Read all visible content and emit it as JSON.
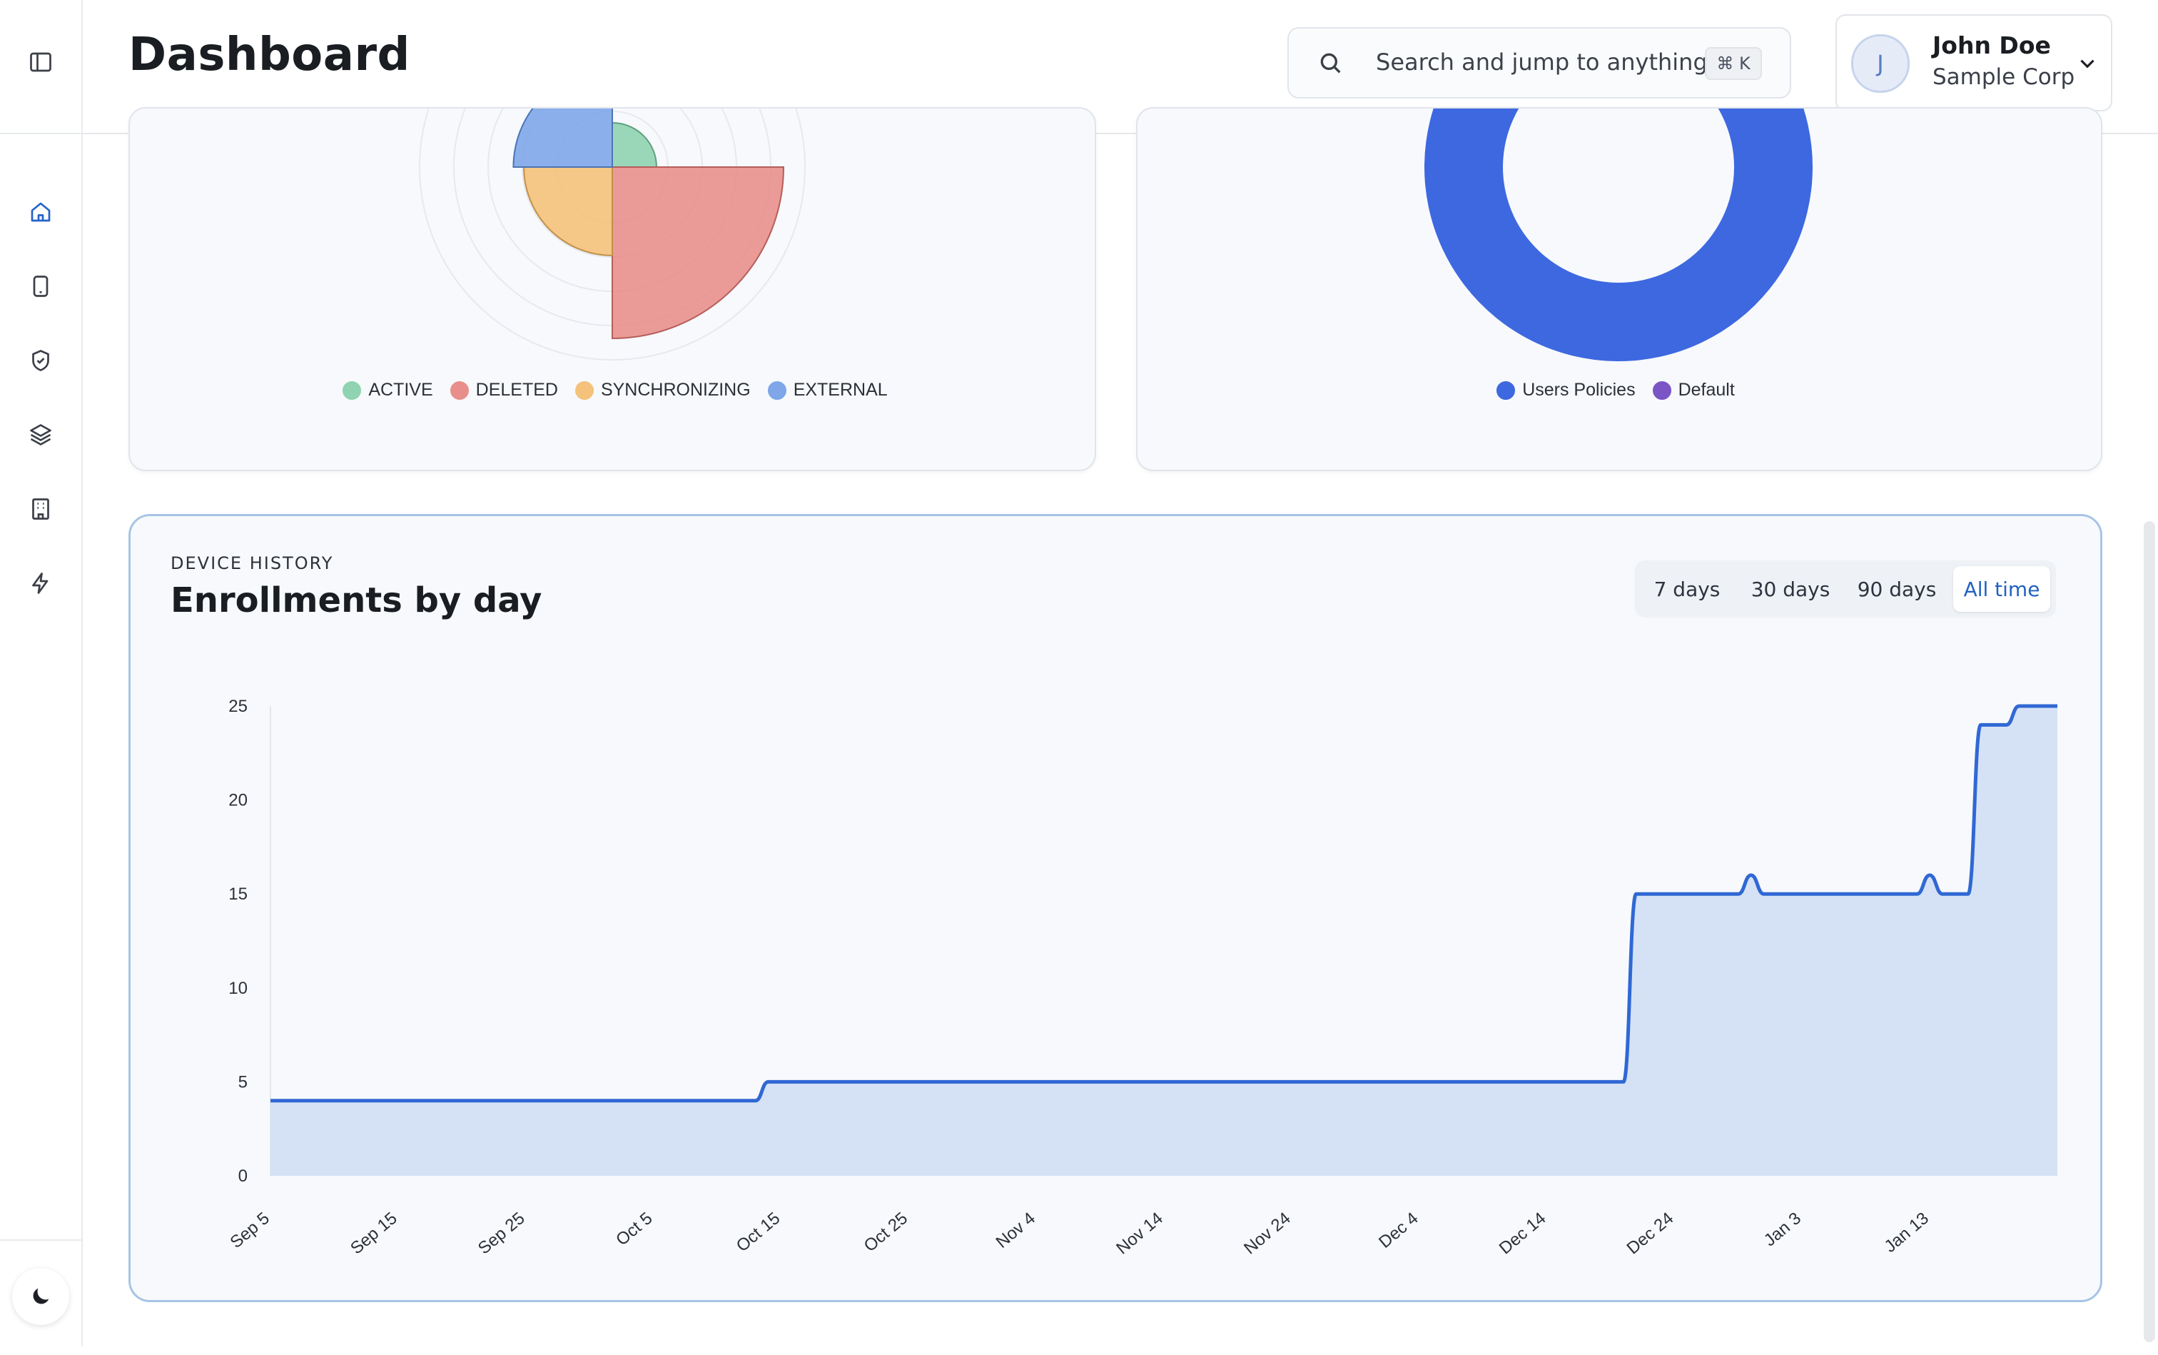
{
  "header": {
    "title": "Dashboard",
    "search_placeholder": "Search and jump to anything...",
    "shortcut": "⌘ K",
    "user": {
      "initial": "J",
      "name": "John Doe",
      "org": "Sample Corp"
    }
  },
  "sidebar": {
    "items": [
      {
        "icon": "home-icon",
        "active": true
      },
      {
        "icon": "device-icon",
        "active": false
      },
      {
        "icon": "shield-check-icon",
        "active": false
      },
      {
        "icon": "layers-icon",
        "active": false
      },
      {
        "icon": "building-icon",
        "active": false
      },
      {
        "icon": "lightning-icon",
        "active": false
      }
    ],
    "theme_icon": "moon-icon",
    "collapse_icon": "sidebar-toggle-icon"
  },
  "status_chart": {
    "legend": [
      {
        "label": "ACTIVE",
        "color": "#8fd3b0"
      },
      {
        "label": "DELETED",
        "color": "#e88f8c"
      },
      {
        "label": "SYNCHRONIZING",
        "color": "#f4c27a"
      },
      {
        "label": "EXTERNAL",
        "color": "#7ea6e8"
      }
    ]
  },
  "policy_chart": {
    "legend": [
      {
        "label": "Users Policies",
        "color": "#3d68e0"
      },
      {
        "label": "Default",
        "color": "#7b55c6"
      }
    ]
  },
  "history": {
    "section_label": "DEVICE HISTORY",
    "title": "Enrollments by day",
    "ranges": [
      "7 days",
      "30 days",
      "90 days",
      "All time"
    ],
    "active_range": "All time"
  },
  "chart_data": [
    {
      "type": "pie",
      "variant": "polar-area",
      "labels": [
        "ACTIVE",
        "DELETED",
        "SYNCHRONIZING",
        "EXTERNAL"
      ],
      "colors": [
        "#8fd3b0",
        "#e88f8c",
        "#f4c27a",
        "#7ea6e8"
      ],
      "values": [
        1,
        15,
        4,
        5
      ],
      "legend": "bottom"
    },
    {
      "type": "pie",
      "variant": "doughnut",
      "labels": [
        "Users Policies",
        "Default"
      ],
      "colors": [
        "#3d68e0",
        "#7b55c6"
      ],
      "values": [
        86,
        14
      ],
      "legend": "bottom"
    },
    {
      "type": "area",
      "x_start": "Sep 5",
      "tick_labels": [
        "Sep 5",
        "Sep 15",
        "Sep 25",
        "Oct 5",
        "Oct 15",
        "Oct 25",
        "Nov 4",
        "Nov 14",
        "Nov 24",
        "Dec 4",
        "Dec 14",
        "Dec 24",
        "Jan 3",
        "Jan 13"
      ],
      "ylim": [
        0,
        25
      ],
      "yticks": [
        0,
        5,
        10,
        15,
        20,
        25
      ],
      "series": [
        {
          "color": "#3068d4",
          "fill": "#d3e0f6",
          "points": [
            [
              "Sep 5",
              4
            ],
            [
              "Oct 13",
              4
            ],
            [
              "Oct 14",
              5
            ],
            [
              "Dec 20",
              5
            ],
            [
              "Dec 21",
              15
            ],
            [
              "Dec 29",
              15
            ],
            [
              "Dec 30",
              16
            ],
            [
              "Dec 31",
              15
            ],
            [
              "Jan 12",
              15
            ],
            [
              "Jan 13",
              16
            ],
            [
              "Jan 14",
              15
            ],
            [
              "Jan 16",
              15
            ],
            [
              "Jan 17",
              24
            ],
            [
              "Jan 19",
              24
            ],
            [
              "Jan 20",
              25
            ],
            [
              "Jan 23",
              25
            ]
          ]
        }
      ],
      "grid": false
    }
  ]
}
